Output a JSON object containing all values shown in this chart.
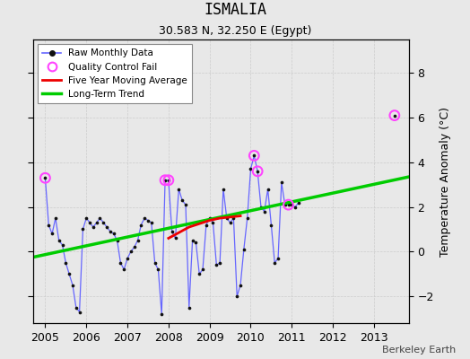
{
  "title": "ISMALIA",
  "subtitle": "30.583 N, 32.250 E (Egypt)",
  "ylabel": "Temperature Anomaly (°C)",
  "credit": "Berkeley Earth",
  "background_color": "#e8e8e8",
  "plot_background": "#e8e8e8",
  "xlim": [
    2004.7,
    2013.85
  ],
  "ylim": [
    -3.2,
    9.5
  ],
  "yticks": [
    -2,
    0,
    2,
    4,
    6,
    8
  ],
  "xticks": [
    2005,
    2006,
    2007,
    2008,
    2009,
    2010,
    2011,
    2012,
    2013
  ],
  "raw_x": [
    2005.0,
    2005.083,
    2005.167,
    2005.25,
    2005.333,
    2005.417,
    2005.5,
    2005.583,
    2005.667,
    2005.75,
    2005.833,
    2005.917,
    2006.0,
    2006.083,
    2006.167,
    2006.25,
    2006.333,
    2006.417,
    2006.5,
    2006.583,
    2006.667,
    2006.75,
    2006.833,
    2006.917,
    2007.0,
    2007.083,
    2007.167,
    2007.25,
    2007.333,
    2007.417,
    2007.5,
    2007.583,
    2007.667,
    2007.75,
    2007.833,
    2007.917,
    2008.0,
    2008.083,
    2008.167,
    2008.25,
    2008.333,
    2008.417,
    2008.5,
    2008.583,
    2008.667,
    2008.75,
    2008.833,
    2008.917,
    2009.0,
    2009.083,
    2009.167,
    2009.25,
    2009.333,
    2009.417,
    2009.5,
    2009.583,
    2009.667,
    2009.75,
    2009.833,
    2009.917,
    2010.0,
    2010.083,
    2010.167,
    2010.25,
    2010.333,
    2010.417,
    2010.5,
    2010.583,
    2010.667,
    2010.75,
    2010.833,
    2010.917,
    2011.0,
    2011.083,
    2011.167
  ],
  "raw_y": [
    3.3,
    1.2,
    0.8,
    1.5,
    0.5,
    0.3,
    -0.5,
    -1.0,
    -1.5,
    -2.5,
    -2.7,
    1.0,
    1.5,
    1.3,
    1.1,
    1.3,
    1.5,
    1.3,
    1.1,
    0.9,
    0.8,
    0.5,
    -0.5,
    -0.8,
    -0.3,
    0.0,
    0.2,
    0.5,
    1.2,
    1.5,
    1.4,
    1.3,
    -0.5,
    -0.8,
    -2.8,
    3.2,
    3.2,
    0.9,
    0.6,
    2.8,
    2.3,
    2.1,
    -2.5,
    0.5,
    0.4,
    -1.0,
    -0.8,
    1.2,
    1.5,
    1.3,
    -0.6,
    -0.5,
    2.8,
    1.5,
    1.3,
    1.5,
    -2.0,
    -1.5,
    0.1,
    1.5,
    3.7,
    4.3,
    3.6,
    2.0,
    1.8,
    2.8,
    1.2,
    -0.5,
    -0.3,
    3.1,
    2.1,
    2.1,
    2.1,
    2.0,
    2.2
  ],
  "outlier_x": [
    2013.5
  ],
  "outlier_y": [
    6.1
  ],
  "qc_x": [
    2005.0,
    2007.917,
    2008.0,
    2010.083,
    2010.167,
    2010.917,
    2013.5
  ],
  "qc_y": [
    3.3,
    3.2,
    3.2,
    4.3,
    3.6,
    2.1,
    6.1
  ],
  "moving_avg_x": [
    2008.0,
    2008.25,
    2008.5,
    2008.75,
    2009.0,
    2009.25,
    2009.5,
    2009.75
  ],
  "moving_avg_y": [
    0.6,
    0.85,
    1.1,
    1.25,
    1.4,
    1.5,
    1.55,
    1.6
  ],
  "trend_x": [
    2004.7,
    2013.85
  ],
  "trend_y": [
    -0.25,
    3.35
  ],
  "line_color": "#6666ff",
  "dot_color": "#111111",
  "qc_color": "#ff44ff",
  "moving_avg_color": "#ee0000",
  "trend_color": "#00cc00",
  "grid_color": "#cccccc"
}
